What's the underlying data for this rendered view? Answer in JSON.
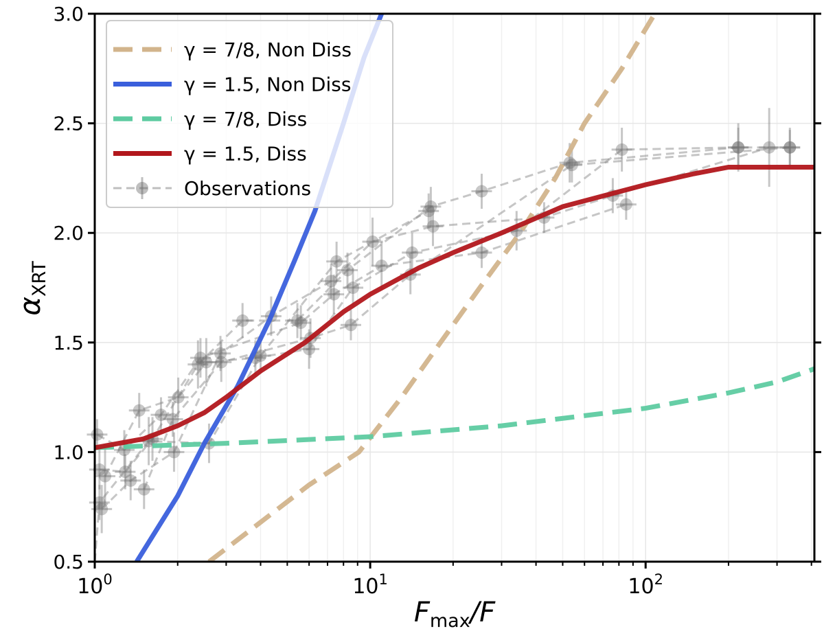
{
  "chart_data": {
    "type": "line",
    "xscale": "log",
    "xlabel_main": "F",
    "xlabel_sub": "max",
    "xlabel_tail": "/F",
    "ylabel_main": "α",
    "ylabel_sub": "XRT",
    "xlim": [
      1,
      410
    ],
    "ylim": [
      0.5,
      3.0
    ],
    "grid": true,
    "legend_position": "top-left",
    "x_ticks": [
      {
        "value": 1,
        "base": "10",
        "exp": "0"
      },
      {
        "value": 10,
        "base": "10",
        "exp": "1"
      },
      {
        "value": 100,
        "base": "10",
        "exp": "2"
      }
    ],
    "y_ticks": [
      "0.5",
      "1.0",
      "1.5",
      "2.0",
      "2.5",
      "3.0"
    ],
    "models": [
      {
        "name": "γ = 7/8, Non Diss",
        "color": "#d2b48c",
        "dashed": true,
        "points": [
          [
            2.6,
            0.5
          ],
          [
            4,
            0.68
          ],
          [
            6,
            0.85
          ],
          [
            9.1,
            1.0
          ],
          [
            13,
            1.25
          ],
          [
            18,
            1.5
          ],
          [
            25,
            1.75
          ],
          [
            35,
            2.0
          ],
          [
            47,
            2.25
          ],
          [
            60,
            2.5
          ],
          [
            82,
            2.75
          ],
          [
            108,
            3.0
          ]
        ]
      },
      {
        "name": "γ = 1.5, Non Diss",
        "color": "#3a5fdc",
        "dashed": false,
        "points": [
          [
            1.42,
            0.5
          ],
          [
            2.0,
            0.8
          ],
          [
            2.5,
            1.04
          ],
          [
            3.3,
            1.3
          ],
          [
            4.3,
            1.6
          ],
          [
            5.3,
            1.87
          ],
          [
            6.3,
            2.1
          ],
          [
            8,
            2.5
          ],
          [
            9.5,
            2.8
          ],
          [
            11,
            3.0
          ]
        ]
      },
      {
        "name": "γ = 7/8, Diss",
        "color": "#5ecba1",
        "dashed": true,
        "points": [
          [
            1,
            1.02
          ],
          [
            3,
            1.04
          ],
          [
            10,
            1.07
          ],
          [
            30,
            1.12
          ],
          [
            100,
            1.2
          ],
          [
            200,
            1.27
          ],
          [
            300,
            1.32
          ],
          [
            410,
            1.38
          ]
        ]
      },
      {
        "name": "γ = 1.5, Diss",
        "color": "#b2171c",
        "dashed": false,
        "points": [
          [
            1,
            1.02
          ],
          [
            1.5,
            1.06
          ],
          [
            2,
            1.12
          ],
          [
            2.5,
            1.18
          ],
          [
            3,
            1.25
          ],
          [
            4,
            1.37
          ],
          [
            5.8,
            1.5
          ],
          [
            8,
            1.64
          ],
          [
            10,
            1.72
          ],
          [
            15,
            1.84
          ],
          [
            20,
            1.91
          ],
          [
            30,
            2.0
          ],
          [
            50,
            2.12
          ],
          [
            100,
            2.22
          ],
          [
            150,
            2.27
          ],
          [
            200,
            2.3
          ],
          [
            410,
            2.3
          ]
        ]
      }
    ],
    "observations": {
      "name": "Observations",
      "color": "#808080",
      "sequences": [
        [
          [
            1.04,
            0.92,
            0.06
          ],
          [
            1.29,
            0.91,
            0.05
          ],
          [
            1.62,
            1.06,
            0.07
          ],
          [
            2.37,
            1.4,
            0.08
          ],
          [
            3.44,
            1.6,
            0.05
          ],
          [
            5.44,
            1.6,
            0.05
          ],
          [
            8.27,
            1.83,
            0.05
          ],
          [
            16.6,
            2.12,
            0.06
          ],
          [
            25.4,
            2.19,
            0.05
          ],
          [
            53,
            2.32,
            0.06
          ],
          [
            217,
            2.39,
            0.08
          ],
          [
            334,
            2.39,
            0.06
          ]
        ],
        [
          [
            1.06,
            0.74,
            0.08
          ],
          [
            1.35,
            0.87,
            0.06
          ],
          [
            1.94,
            1.0,
            0.06
          ],
          [
            2.86,
            1.45,
            0.05
          ],
          [
            4.37,
            1.62,
            0.06
          ],
          [
            7.21,
            1.78,
            0.05
          ],
          [
            10.2,
            1.96,
            0.08
          ],
          [
            16.9,
            2.03,
            0.06
          ],
          [
            42.8,
            2.07,
            0.04
          ],
          [
            76,
            2.17,
            0.05
          ],
          [
            281,
            2.39,
            0.15
          ]
        ],
        [
          [
            1.09,
            0.89,
            0.1
          ],
          [
            1.45,
            1.19,
            0.05
          ],
          [
            2.01,
            1.25,
            0.06
          ],
          [
            2.54,
            1.41,
            0.08
          ],
          [
            3.83,
            1.43,
            0.05
          ],
          [
            6.0,
            1.47,
            0.06
          ],
          [
            8.66,
            1.75,
            0.06
          ],
          [
            14.2,
            1.91,
            0.06
          ],
          [
            34,
            2.01,
            0.06
          ],
          [
            82,
            2.38,
            0.07
          ],
          [
            217,
            2.39,
            0.06
          ]
        ],
        [
          [
            1.02,
            1.08,
            0.04
          ],
          [
            1.28,
            1.01,
            0.06
          ],
          [
            1.74,
            1.17,
            0.05
          ],
          [
            2.42,
            1.43,
            0.06
          ],
          [
            5.6,
            1.59,
            0.05
          ],
          [
            7.38,
            1.72,
            0.06
          ],
          [
            11,
            1.85,
            0.08
          ],
          [
            25.4,
            1.91,
            0.04
          ],
          [
            85,
            2.13,
            0.04
          ]
        ],
        [
          [
            1.51,
            0.83,
            0.06
          ],
          [
            1.92,
            1.15,
            0.05
          ],
          [
            2.88,
            1.41,
            0.06
          ],
          [
            6.07,
            1.52,
            0.06
          ],
          [
            8.51,
            1.58,
            0.04
          ],
          [
            14,
            1.81,
            0.06
          ],
          [
            54,
            2.31,
            0.05
          ],
          [
            334,
            2.39,
            0.05
          ]
        ],
        [
          [
            1.0,
            0.5,
            0.0
          ],
          [
            1.04,
            0.77,
            0.05
          ],
          [
            1.57,
            1.05,
            0.08
          ],
          [
            2.6,
            1.04,
            0.06
          ],
          [
            4.0,
            1.44,
            0.05
          ],
          [
            7.55,
            1.87,
            0.06
          ],
          [
            16.3,
            2.1,
            0.05
          ]
        ]
      ]
    }
  }
}
